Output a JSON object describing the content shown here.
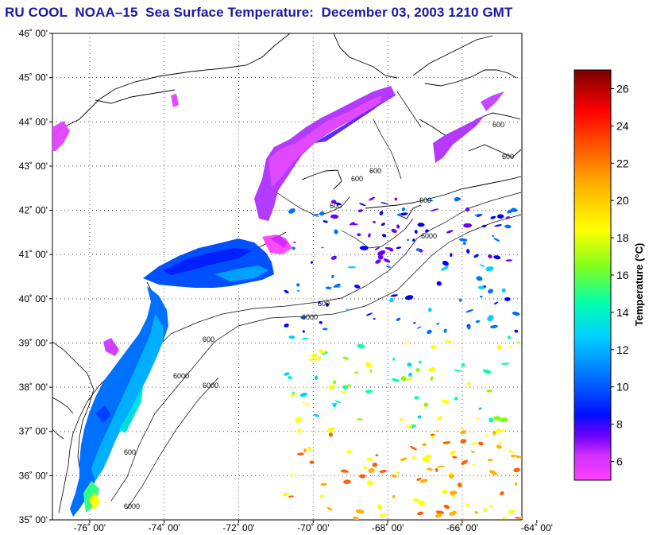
{
  "title": "RU COOL  NOAA–15  Sea Surface Temperature:  December 03, 2003 1210 GMT",
  "map": {
    "lat_labels": [
      "46˚ 00'",
      "45˚ 00'",
      "44˚ 00'",
      "43˚ 00'",
      "42˚ 00'",
      "41˚ 00'",
      "40˚ 00'",
      "39˚ 00'",
      "38˚ 00'",
      "37˚ 00'",
      "36˚ 00'",
      "35˚ 00'"
    ],
    "lon_labels": [
      "-76˚ 00'",
      "-74˚ 00'",
      "-72˚ 00'",
      "-70˚ 00'",
      "-68˚ 00'",
      "-66˚ 00'",
      "-64˚ 00'"
    ],
    "lat_range": [
      35,
      46
    ],
    "lon_range": [
      -77,
      -64.4
    ],
    "contour_labels": [
      "600",
      "600",
      "600",
      "600",
      "600",
      "600",
      "6000",
      "6000",
      "6000",
      "600",
      "600",
      "600",
      "6000",
      "6000"
    ]
  },
  "colorbar": {
    "label": "Temperature (°C)",
    "ticks": [
      "26",
      "24",
      "22",
      "20",
      "18",
      "16",
      "14",
      "12",
      "10",
      "8",
      "6"
    ],
    "range": [
      5,
      27
    ],
    "colors": [
      "#ff40ff",
      "#c020ff",
      "#6a00ff",
      "#0000ff",
      "#0070ff",
      "#00d0ff",
      "#00ffb0",
      "#80ff00",
      "#ffff00",
      "#ffb000",
      "#ff6000",
      "#ff0000",
      "#b00000",
      "#800000"
    ]
  }
}
